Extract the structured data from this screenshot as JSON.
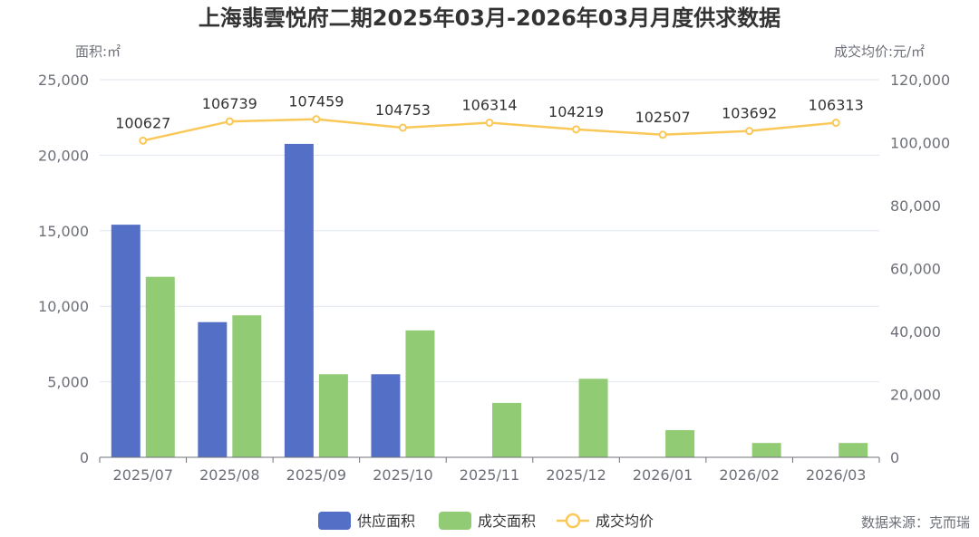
{
  "chart_data": {
    "type": "bar",
    "title": "上海翡雲悦府二期2025年03月-2026年03月月度供求数据",
    "categories": [
      "2025/07",
      "2025/08",
      "2025/09",
      "2025/10",
      "2025/11",
      "2025/12",
      "2026/01",
      "2026/02",
      "2026/03"
    ],
    "y_left": {
      "name": "面积:㎡",
      "min": 0,
      "max": 25000,
      "ticks": [
        "0",
        "5,000",
        "10,000",
        "15,000",
        "20,000",
        "25,000"
      ]
    },
    "y_right": {
      "name": "成交均价:元/㎡",
      "min": 0,
      "max": 120000,
      "ticks": [
        "0",
        "20,000",
        "40,000",
        "60,000",
        "80,000",
        "100,000",
        "120,000"
      ]
    },
    "series": [
      {
        "name": "供应面积",
        "type": "bar",
        "axis": "left",
        "color": "#5470c6",
        "values": [
          15400,
          8950,
          20750,
          5500,
          0,
          0,
          0,
          0,
          0
        ]
      },
      {
        "name": "成交面积",
        "type": "bar",
        "axis": "left",
        "color": "#91cc75",
        "values": [
          11950,
          9400,
          5500,
          8400,
          3600,
          5200,
          1800,
          950,
          950
        ]
      },
      {
        "name": "成交均价",
        "type": "line",
        "axis": "right",
        "color": "#fac858",
        "values": [
          100627,
          106739,
          107459,
          104753,
          106314,
          104219,
          102507,
          103692,
          106313
        ],
        "labels": [
          "100627",
          "106739",
          "107459",
          "104753",
          "106314",
          "104219",
          "102507",
          "103692",
          "106313"
        ]
      }
    ],
    "grid": true,
    "legend_position": "bottom-center"
  },
  "source_note": "数据来源：克而瑞"
}
